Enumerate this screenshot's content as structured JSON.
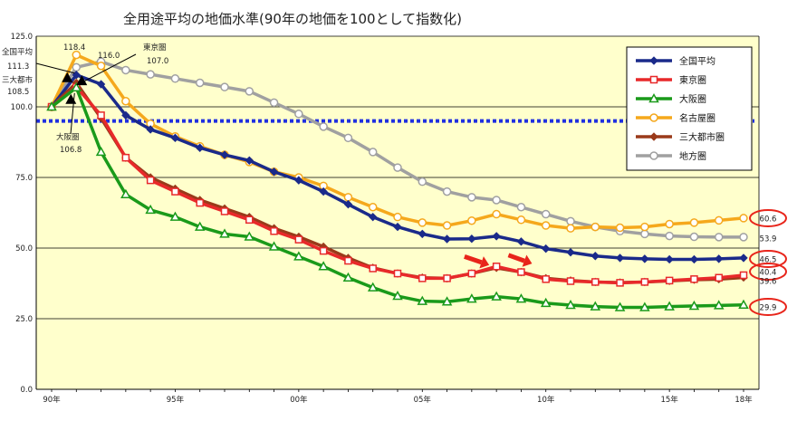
{
  "chart_data": {
    "type": "line",
    "title": "全用途平均の地価水準(90年の地価を100として指数化)",
    "xlabel": "",
    "ylabel": "",
    "ylim": [
      0,
      125
    ],
    "yticks": [
      "0.0",
      "25.0",
      "50.0",
      "75.0",
      "100.0",
      "125.0"
    ],
    "yticks_values": [
      0,
      25,
      50,
      75,
      100,
      125
    ],
    "x": [
      1990,
      1991,
      1992,
      1993,
      1994,
      1995,
      1996,
      1997,
      1998,
      1999,
      2000,
      2001,
      2002,
      2003,
      2004,
      2005,
      2006,
      2007,
      2008,
      2009,
      2010,
      2011,
      2012,
      2013,
      2014,
      2015,
      2016,
      2017,
      2018
    ],
    "xticks": [
      {
        "label": "90年",
        "x": 1990
      },
      {
        "label": "95年",
        "x": 1995
      },
      {
        "label": "00年",
        "x": 2000
      },
      {
        "label": "05年",
        "x": 2005
      },
      {
        "label": "10年",
        "x": 2010
      },
      {
        "label": "15年",
        "x": 2015
      },
      {
        "label": "18年",
        "x": 2018
      }
    ],
    "grid": true,
    "plot_background": "#ffffcc",
    "reference_line": {
      "y": 95,
      "color": "#1f2fe0",
      "style": "dotted"
    },
    "legend_position": "top-right",
    "series": [
      {
        "name": "全国平均",
        "color": "#1a2a8a",
        "marker": "diamond",
        "values": [
          100,
          111.3,
          108,
          97,
          92,
          89,
          85.5,
          83,
          81,
          77,
          74,
          70,
          65.5,
          61,
          57.5,
          55,
          53.2,
          53.3,
          54.2,
          52.3,
          49.8,
          48.5,
          47.2,
          46.5,
          46.2,
          46,
          46,
          46.2,
          46.5
        ]
      },
      {
        "name": "東京圏",
        "color": "#e8292a",
        "marker": "square",
        "values": [
          100,
          107,
          97,
          82,
          74,
          70,
          66,
          63,
          60,
          56,
          53,
          49,
          45.5,
          42.8,
          41,
          39.3,
          39.3,
          41,
          43.5,
          41.5,
          39,
          38.3,
          38,
          37.7,
          38,
          38.5,
          39,
          39.5,
          40.4
        ]
      },
      {
        "name": "大阪圏",
        "color": "#1a9a1a",
        "marker": "triangle",
        "values": [
          100,
          106.8,
          84,
          69,
          63.5,
          61,
          57.5,
          55,
          54,
          50.5,
          47,
          43.5,
          39.5,
          36,
          33,
          31.2,
          31,
          32,
          32.8,
          32,
          30.5,
          29.8,
          29.3,
          29,
          29,
          29.3,
          29.5,
          29.7,
          29.9
        ]
      },
      {
        "name": "名古屋圏",
        "color": "#f5a81c",
        "marker": "circle",
        "values": [
          100,
          118.4,
          114.5,
          102,
          94,
          89.5,
          86,
          83,
          80.5,
          77,
          75,
          72,
          68,
          64.5,
          61,
          59,
          58,
          59.7,
          62,
          60,
          58,
          57,
          57.5,
          57.2,
          57.5,
          58.5,
          59,
          59.8,
          60.6
        ]
      },
      {
        "name": "三大都市圏",
        "color": "#9a3a1a",
        "marker": "diamond",
        "values": [
          100,
          108.5,
          96,
          82,
          75,
          71,
          67,
          64,
          61,
          57,
          54,
          50.5,
          46.5,
          43,
          41,
          39.5,
          39.3,
          41,
          43,
          41.5,
          39.3,
          38.5,
          38,
          37.8,
          38,
          38.4,
          38.8,
          39,
          39.6
        ]
      },
      {
        "name": "地方圏",
        "color": "#a0a0a0",
        "marker": "circle",
        "values": [
          100,
          114,
          116,
          113,
          111.5,
          110,
          108.5,
          107,
          105.5,
          101.5,
          97.5,
          93,
          89,
          84,
          78.5,
          73.5,
          70,
          68,
          67,
          64.5,
          62,
          59.5,
          57.5,
          56,
          55,
          54.3,
          54,
          53.9,
          53.9
        ]
      }
    ],
    "annotations": [
      {
        "text": "125.0"
      },
      {
        "text": "118.4"
      },
      {
        "text": "116.0"
      },
      {
        "text": "全国平均"
      },
      {
        "text": "111.3"
      },
      {
        "text": "三大都市"
      },
      {
        "text": "108.5"
      },
      {
        "text": "東京圏"
      },
      {
        "text": "107.0"
      },
      {
        "text": "大阪圏"
      },
      {
        "text": "106.8"
      }
    ],
    "end_labels": [
      {
        "text": "60.6",
        "circled": true
      },
      {
        "text": "53.9",
        "circled": false
      },
      {
        "text": "46.5",
        "circled": true
      },
      {
        "text": "40.4",
        "circled": true
      },
      {
        "text": "39.6",
        "circled": false
      },
      {
        "text": "29.9",
        "circled": true
      }
    ],
    "highlight_arrow_color": "#e8241a"
  }
}
